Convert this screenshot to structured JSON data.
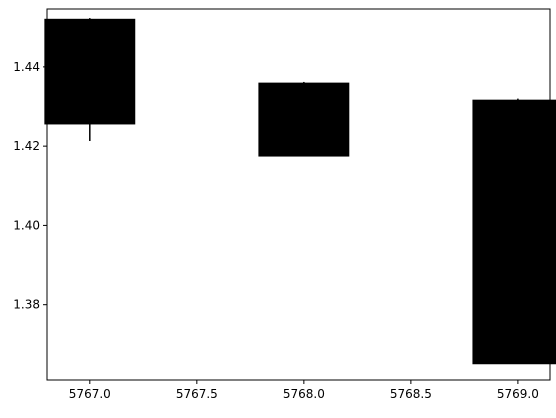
{
  "chart_data": {
    "type": "candlestick",
    "title": "",
    "xlabel": "",
    "ylabel": "",
    "xlim": [
      5766.8,
      5769.15
    ],
    "ylim": [
      1.361,
      1.4546
    ],
    "grid": false,
    "legend": "none",
    "x_ticks": [
      5767.0,
      5767.5,
      5768.0,
      5768.5,
      5769.0
    ],
    "x_tick_labels": [
      "5767.0",
      "5767.5",
      "5768.0",
      "5768.5",
      "5769.0"
    ],
    "y_ticks": [
      1.38,
      1.4,
      1.42,
      1.44
    ],
    "y_tick_labels": [
      "1.38",
      "1.40",
      "1.42",
      "1.44"
    ],
    "candles": [
      {
        "x": 5767.0,
        "low": 1.4213,
        "body_low": 1.4256,
        "body_high": 1.452,
        "high": 1.4523
      },
      {
        "x": 5768.0,
        "low": 1.4175,
        "body_low": 1.4175,
        "body_high": 1.4359,
        "high": 1.4362
      },
      {
        "x": 5769.0,
        "low": 1.3651,
        "body_low": 1.3651,
        "body_high": 1.4316,
        "high": 1.432
      }
    ],
    "colors": {
      "body": "#000000",
      "wick": "#000000",
      "axes": "#000000",
      "background": "#ffffff"
    }
  }
}
